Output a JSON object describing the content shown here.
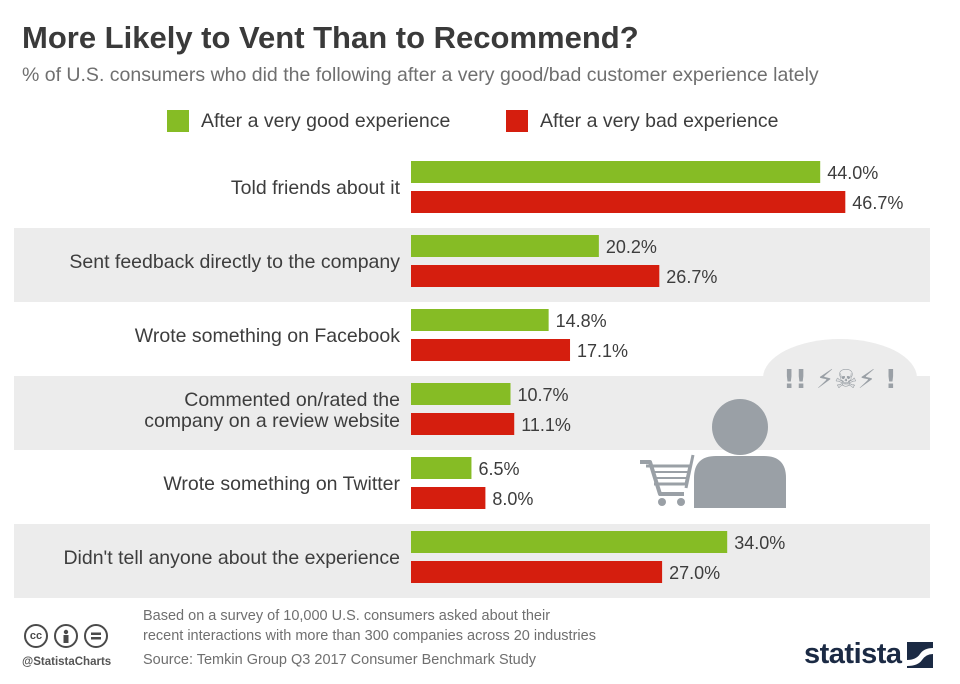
{
  "title": "More Likely to Vent Than to Recommend?",
  "subtitle": "% of U.S. consumers who did the following after a very good/bad customer experience lately",
  "colors": {
    "good": "#86bc25",
    "bad": "#d51e0e",
    "band": "#ececec",
    "icon": "#9aa0a6"
  },
  "chart_data": {
    "type": "bar",
    "orientation": "horizontal",
    "categories": [
      "Told friends about it",
      "Sent feedback directly to the company",
      "Wrote something on Facebook",
      "Commented on/rated the company on a review website",
      "Wrote something on Twitter",
      "Didn't tell anyone about the experience"
    ],
    "category_lines": [
      [
        "Told friends about it"
      ],
      [
        "Sent feedback directly to the company"
      ],
      [
        "Wrote something on Facebook"
      ],
      [
        "Commented on/rated the",
        "company on a review website"
      ],
      [
        "Wrote something on Twitter"
      ],
      [
        "Didn't tell anyone about the experience"
      ]
    ],
    "series": [
      {
        "name": "After a very good experience",
        "values": [
          44.0,
          20.2,
          14.8,
          10.7,
          6.5,
          34.0
        ],
        "labels": [
          "44.0%",
          "20.2%",
          "14.8%",
          "10.7%",
          "6.5%",
          "34.0%"
        ]
      },
      {
        "name": "After a very bad experience",
        "values": [
          46.7,
          26.7,
          17.1,
          11.1,
          8.0,
          27.0
        ],
        "labels": [
          "46.7%",
          "26.7%",
          "17.1%",
          "11.1%",
          "8.0%",
          "27.0%"
        ]
      }
    ],
    "xlim": [
      0,
      50
    ],
    "grid": false,
    "legend_position": "top"
  },
  "footnote_lines": [
    "Based on a survey of 10,000 U.S. consumers asked about their",
    "recent interactions with more than 300 companies across 20 industries"
  ],
  "source": "Source: Temkin Group Q3 2017 Consumer Benchmark Study",
  "handle": "@StatistaCharts",
  "logo": "statista",
  "speech_text": "!! ⚡☠⚡ !",
  "icons": [
    "shopping-cart-icon",
    "person-icon",
    "speech-bubble-icon",
    "cc-icon",
    "attribution-icon",
    "no-derivatives-icon",
    "statista-logo-icon"
  ]
}
